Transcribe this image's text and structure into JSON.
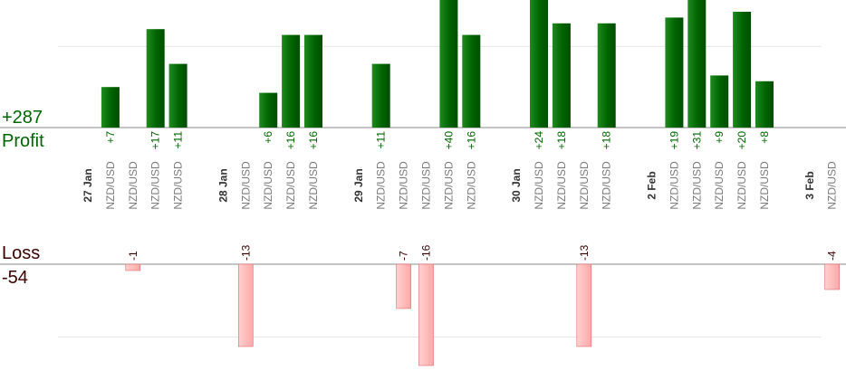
{
  "summary": {
    "profit_total": "+287",
    "profit_label": "Profit",
    "loss_label": "Loss",
    "loss_total": "-54"
  },
  "colors": {
    "profit_bar": "#006400",
    "profit_bar_light": "#1f8a1f",
    "loss_bar": "#ffa8a8",
    "loss_bar_edge": "#e06a6a",
    "profit_text": "#006400",
    "loss_text": "#3a0000",
    "date_text": "#333333",
    "symbol_text": "#7a7a7a",
    "axis_line": "#888888",
    "grid_line": "#e6e6e6"
  },
  "chart_data": {
    "type": "bar",
    "grid": true,
    "profit_axis_max": 18,
    "loss_axis_max": 16,
    "columns": [
      {
        "kind": "date",
        "label": "27 Jan"
      },
      {
        "kind": "trade",
        "symbol": "NZD/USD",
        "result": 7,
        "label": "+7"
      },
      {
        "kind": "trade",
        "symbol": "NZD/USD",
        "result": -1,
        "label": "-1"
      },
      {
        "kind": "trade",
        "symbol": "NZD/USD",
        "result": 17,
        "label": "+17"
      },
      {
        "kind": "trade",
        "symbol": "NZD/USD",
        "result": 11,
        "label": "+11"
      },
      {
        "kind": "spacer"
      },
      {
        "kind": "date",
        "label": "28 Jan"
      },
      {
        "kind": "trade",
        "symbol": "NZD/USD",
        "result": -13,
        "label": "-13"
      },
      {
        "kind": "trade",
        "symbol": "NZD/USD",
        "result": 6,
        "label": "+6"
      },
      {
        "kind": "trade",
        "symbol": "NZD/USD",
        "result": 16,
        "label": "+16"
      },
      {
        "kind": "trade",
        "symbol": "NZD/USD",
        "result": 16,
        "label": "+16"
      },
      {
        "kind": "spacer"
      },
      {
        "kind": "date",
        "label": "29 Jan"
      },
      {
        "kind": "trade",
        "symbol": "NZD/USD",
        "result": 11,
        "label": "+11"
      },
      {
        "kind": "trade",
        "symbol": "NZD/USD",
        "result": -7,
        "label": "-7"
      },
      {
        "kind": "trade",
        "symbol": "NZD/USD",
        "result": -16,
        "label": "-16"
      },
      {
        "kind": "trade",
        "symbol": "NZD/USD",
        "result": 40,
        "label": "+40"
      },
      {
        "kind": "trade",
        "symbol": "NZD/USD",
        "result": 16,
        "label": "+16"
      },
      {
        "kind": "spacer"
      },
      {
        "kind": "date",
        "label": "30 Jan"
      },
      {
        "kind": "trade",
        "symbol": "NZD/USD",
        "result": 24,
        "label": "+24"
      },
      {
        "kind": "trade",
        "symbol": "NZD/USD",
        "result": 18,
        "label": "+18"
      },
      {
        "kind": "trade",
        "symbol": "NZD/USD",
        "result": -13,
        "label": "-13"
      },
      {
        "kind": "trade",
        "symbol": "NZD/USD",
        "result": 18,
        "label": "+18"
      },
      {
        "kind": "spacer"
      },
      {
        "kind": "date",
        "label": "2 Feb"
      },
      {
        "kind": "trade",
        "symbol": "NZD/USD",
        "result": 19,
        "label": "+19"
      },
      {
        "kind": "trade",
        "symbol": "NZD/USD",
        "result": 31,
        "label": "+31"
      },
      {
        "kind": "trade",
        "symbol": "NZD/USD",
        "result": 9,
        "label": "+9"
      },
      {
        "kind": "trade",
        "symbol": "NZD/USD",
        "result": 20,
        "label": "+20"
      },
      {
        "kind": "trade",
        "symbol": "NZD/USD",
        "result": 8,
        "label": "+8"
      },
      {
        "kind": "spacer"
      },
      {
        "kind": "date",
        "label": "3 Feb"
      },
      {
        "kind": "trade",
        "symbol": "NZD/USD",
        "result": -4,
        "label": "-4"
      }
    ]
  }
}
